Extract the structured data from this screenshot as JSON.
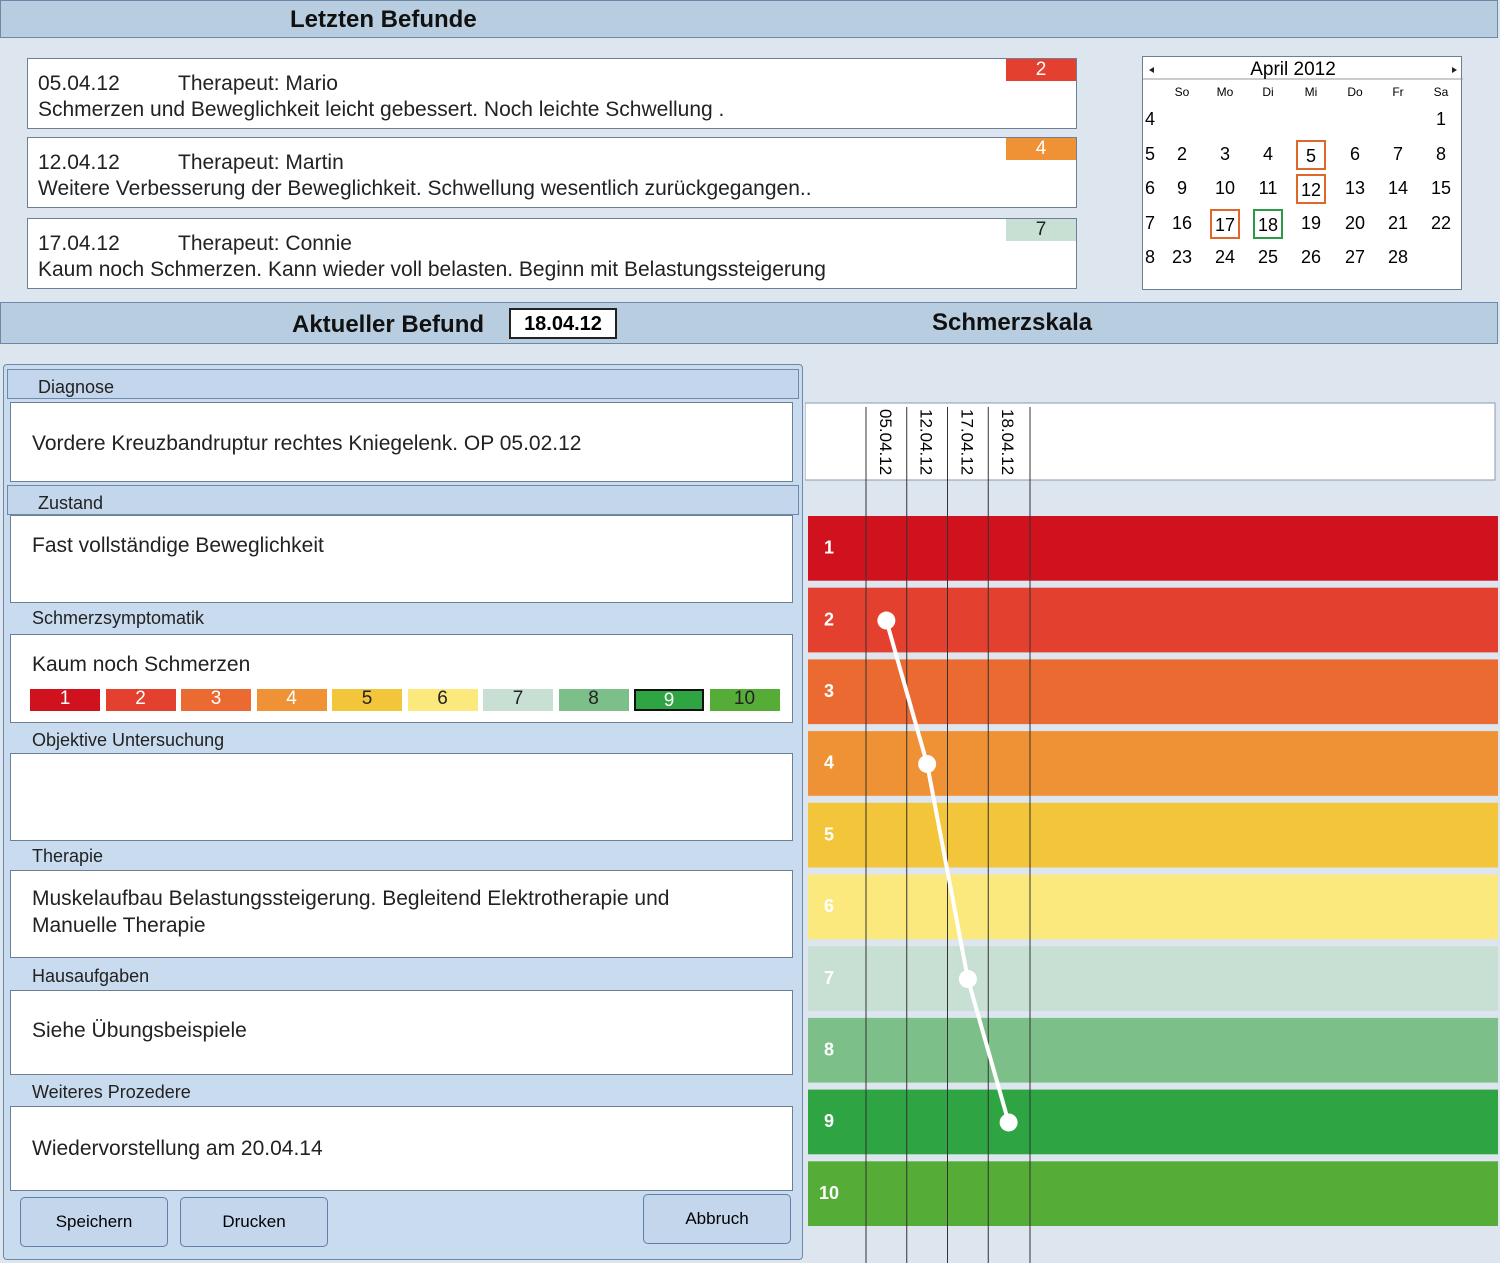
{
  "header": {
    "title": "Letzten Befunde"
  },
  "befunde": [
    {
      "date": "05.04.12",
      "therapist": "Therapeut: Mario",
      "text": "Schmerzen und Beweglichkeit leicht gebessert. Noch leichte Schwellung .",
      "score": 2,
      "color": "#e4402f"
    },
    {
      "date": "12.04.12",
      "therapist": "Therapeut: Martin",
      "text": "Weitere Verbesserung der Beweglichkeit. Schwellung wesentlich zurückgegangen..",
      "score": 4,
      "color": "#ef9236"
    },
    {
      "date": "17.04.12",
      "therapist": "Therapeut: Connie",
      "text": "Kaum noch Schmerzen. Kann wieder voll belasten. Beginn mit Belastungssteigerung",
      "score": 7,
      "color": "#c8e0d4"
    }
  ],
  "calendar": {
    "title": "April 2012",
    "weekdays": [
      "So",
      "Mo",
      "Di",
      "Mi",
      "Do",
      "Fr",
      "Sa"
    ],
    "weeks": [
      {
        "week": 4,
        "days": [
          null,
          null,
          null,
          null,
          null,
          null,
          1
        ]
      },
      {
        "week": 5,
        "days": [
          2,
          3,
          4,
          5,
          6,
          7,
          8
        ]
      },
      {
        "week": 6,
        "days": [
          9,
          10,
          11,
          12,
          13,
          14,
          15
        ]
      },
      {
        "week": 7,
        "days": [
          16,
          17,
          18,
          19,
          20,
          21,
          22
        ]
      },
      {
        "week": 8,
        "days": [
          23,
          24,
          25,
          26,
          27,
          28,
          null
        ]
      }
    ],
    "highlights": [
      {
        "day": 5,
        "color": "#e0662a"
      },
      {
        "day": 12,
        "color": "#e0662a"
      },
      {
        "day": 17,
        "color": "#e0662a"
      },
      {
        "day": 18,
        "color": "#2e9a48"
      }
    ]
  },
  "current": {
    "title": "Aktueller Befund",
    "date": "18.04.12"
  },
  "sections": [
    {
      "label": "Diagnose",
      "text": "Vordere Kreuzbandruptur rechtes Kniegelenk. OP 05.02.12"
    },
    {
      "label": "Zustand",
      "text": "Fast vollständige Beweglichkeit"
    },
    {
      "label": "Schmerzsymptomatik",
      "text": "Kaum noch  Schmerzen"
    },
    {
      "label": "Objektive Untersuchung",
      "text": ""
    },
    {
      "label": "Therapie",
      "text": "Muskelaufbau Belastungssteigerung. Begleitend Elektrotherapie und Manuelle Therapie"
    },
    {
      "label": "Hausaufgaben",
      "text": "Siehe Übungsbeispiele"
    },
    {
      "label": "Weiteres Prozedere",
      "text": "Wiedervorstellung am 20.04.14"
    }
  ],
  "pain_scale": {
    "levels": [
      1,
      2,
      3,
      4,
      5,
      6,
      7,
      8,
      9,
      10
    ],
    "selected": 9
  },
  "buttons": [
    "Speichern",
    "Drucken",
    "Abbruch"
  ],
  "chart_data": {
    "type": "line",
    "title": "Schmerzskala",
    "categories": [
      "05.04.12",
      "12.04.12",
      "17.04.12",
      "18.04.12"
    ],
    "values": [
      2,
      4,
      7,
      9
    ],
    "color": "#ffffff",
    "ylim": [
      0.5,
      10.5
    ],
    "y_inverted": true,
    "yticks": [
      1,
      2,
      3,
      4,
      5,
      6,
      7,
      8,
      9,
      10
    ],
    "band_colors": [
      "#d0121f",
      "#e4402f",
      "#ea6a32",
      "#ef9236",
      "#f3c53a",
      "#fbe97e",
      "#c8e0d4",
      "#7dbf88",
      "#2ea443",
      "#55ad38"
    ]
  }
}
